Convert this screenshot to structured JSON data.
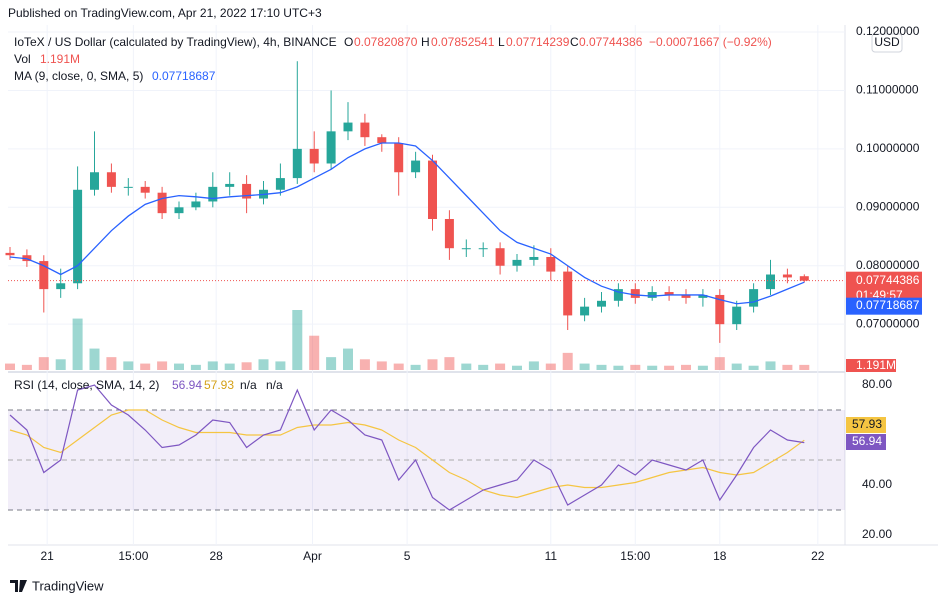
{
  "header": {
    "published": "Published on TradingView.com, Apr 21, 2022 17:10 UTC+3",
    "symbol": "IoTeX / US Dollar (calculated by TradingView), 4h, BINANCE",
    "o_label": "O",
    "o": "0.07820870",
    "h_label": "H",
    "h": "0.07852541",
    "l_label": "L",
    "l": "0.07714239",
    "c_label": "C",
    "c": "0.07744386",
    "change": "−0.00071667 (−0.92%)",
    "currency": "USD",
    "countdown": "01:49:57",
    "footer": "TradingView"
  },
  "chart_data": [
    {
      "type": "candlestick",
      "up_color": "#26a69a",
      "down_color": "#ef5350",
      "open": [
        0.0822,
        0.0818,
        0.0808,
        0.076,
        0.077,
        0.093,
        0.096,
        0.0935,
        0.0935,
        0.0925,
        0.089,
        0.09,
        0.091,
        0.0935,
        0.094,
        0.0915,
        0.093,
        0.095,
        0.1,
        0.0975,
        0.103,
        0.1045,
        0.102,
        0.101,
        0.096,
        0.098,
        0.088,
        0.083,
        0.083,
        0.083,
        0.08,
        0.081,
        0.0815,
        0.079,
        0.0715,
        0.073,
        0.074,
        0.076,
        0.0745,
        0.0755,
        0.075,
        0.0745,
        0.075,
        0.07,
        0.073,
        0.076,
        0.0785,
        0.0782087
      ],
      "high": [
        0.0832,
        0.0828,
        0.0818,
        0.0795,
        0.097,
        0.103,
        0.0975,
        0.095,
        0.0945,
        0.0935,
        0.091,
        0.0925,
        0.096,
        0.096,
        0.0955,
        0.0945,
        0.0975,
        0.115,
        0.103,
        0.11,
        0.108,
        0.106,
        0.1025,
        0.102,
        0.0995,
        0.099,
        0.0895,
        0.0845,
        0.084,
        0.084,
        0.082,
        0.0835,
        0.083,
        0.08,
        0.0745,
        0.0755,
        0.077,
        0.077,
        0.0765,
        0.0765,
        0.076,
        0.076,
        0.076,
        0.074,
        0.077,
        0.081,
        0.0795,
        0.07852541
      ],
      "low": [
        0.081,
        0.0798,
        0.072,
        0.0745,
        0.076,
        0.092,
        0.0925,
        0.092,
        0.0915,
        0.088,
        0.088,
        0.0895,
        0.09,
        0.092,
        0.089,
        0.0905,
        0.092,
        0.094,
        0.096,
        0.0965,
        0.1015,
        0.1005,
        0.0995,
        0.092,
        0.095,
        0.086,
        0.081,
        0.0815,
        0.0815,
        0.0785,
        0.079,
        0.08,
        0.0775,
        0.069,
        0.0705,
        0.072,
        0.073,
        0.0735,
        0.074,
        0.074,
        0.0735,
        0.073,
        0.0668,
        0.069,
        0.072,
        0.075,
        0.077,
        0.07714239
      ],
      "close": [
        0.0818,
        0.0808,
        0.076,
        0.077,
        0.093,
        0.096,
        0.0935,
        0.0935,
        0.0925,
        0.089,
        0.09,
        0.091,
        0.0935,
        0.094,
        0.0915,
        0.093,
        0.095,
        0.1,
        0.0975,
        0.103,
        0.1045,
        0.102,
        0.101,
        0.096,
        0.098,
        0.088,
        0.083,
        0.083,
        0.083,
        0.08,
        0.081,
        0.0815,
        0.079,
        0.0715,
        0.073,
        0.074,
        0.076,
        0.0745,
        0.0755,
        0.075,
        0.0745,
        0.075,
        0.07,
        0.073,
        0.076,
        0.0785,
        0.078,
        0.07744386
      ],
      "volume_name": "Vol",
      "volume": [
        1500000,
        1200000,
        3000000,
        2500000,
        12000000,
        5000000,
        3000000,
        2000000,
        1500000,
        2000000,
        1500000,
        1200000,
        2000000,
        1500000,
        1800000,
        2500000,
        2000000,
        14000000,
        8000000,
        3000000,
        5000000,
        2500000,
        2000000,
        1500000,
        1200000,
        2500000,
        3000000,
        1500000,
        1200000,
        1500000,
        1000000,
        2000000,
        1500000,
        4000000,
        1500000,
        1200000,
        1000000,
        1200000,
        1000000,
        1000000,
        1200000,
        1000000,
        3000000,
        1500000,
        1000000,
        2000000,
        1200000,
        1191000
      ],
      "volume_labels": {
        "47": "1.191M"
      },
      "ma": {
        "name": "MA (9, close, 0, SMA, 5)",
        "color": "#2962ff",
        "values": [
          0.0815,
          0.0812,
          0.08,
          0.0785,
          0.08,
          0.083,
          0.086,
          0.0885,
          0.0905,
          0.0915,
          0.092,
          0.0918,
          0.0915,
          0.0918,
          0.092,
          0.0922,
          0.0925,
          0.0935,
          0.095,
          0.0965,
          0.0985,
          0.1,
          0.101,
          0.101,
          0.1005,
          0.098,
          0.095,
          0.092,
          0.089,
          0.086,
          0.084,
          0.083,
          0.082,
          0.08,
          0.078,
          0.0765,
          0.0755,
          0.075,
          0.0748,
          0.075,
          0.075,
          0.075,
          0.0742,
          0.0735,
          0.0738,
          0.0748,
          0.076,
          0.07718687
        ]
      },
      "ylim": [
        0.0625,
        0.1212
      ],
      "yticks": [
        {
          "value": 0.12,
          "label": "0.12000000"
        },
        {
          "value": 0.11,
          "label": "0.11000000"
        },
        {
          "value": 0.1,
          "label": "0.10000000"
        },
        {
          "value": 0.09,
          "label": "0.09000000"
        },
        {
          "value": 0.08,
          "label": "0.08000000"
        },
        {
          "value": 0.07,
          "label": "0.07000000"
        }
      ],
      "xticks": [
        {
          "value": 2.2,
          "label": "21"
        },
        {
          "value": 7.3,
          "label": "15:00"
        },
        {
          "value": 12.2,
          "label": "28"
        },
        {
          "value": 17.9,
          "label": "Apr"
        },
        {
          "value": 23.5,
          "label": "5"
        },
        {
          "value": 32,
          "label": "11"
        },
        {
          "value": 37,
          "label": "15:00"
        },
        {
          "value": 42,
          "label": "18"
        },
        {
          "value": 47.8,
          "label": "22"
        }
      ],
      "grid": true
    },
    {
      "type": "line",
      "name": "RSI (14, close, SMA, 14, 2)",
      "na": [
        "n/a",
        "n/a"
      ],
      "band": [
        30,
        70
      ],
      "band_color": "#7e57c2",
      "series": [
        {
          "name": "RSI",
          "color": "#7e57c2",
          "values": [
            68,
            62,
            45,
            50,
            78,
            80,
            72,
            68,
            62,
            55,
            56,
            60,
            66,
            65,
            55,
            60,
            62,
            78,
            62,
            70,
            66,
            60,
            58,
            42,
            50,
            35,
            30,
            34,
            38,
            40,
            42,
            50,
            46,
            32,
            36,
            40,
            48,
            44,
            50,
            48,
            46,
            50,
            34,
            44,
            55,
            62,
            58,
            56.94
          ]
        },
        {
          "name": "RSI MA",
          "color": "#f5c542",
          "values": [
            62,
            60,
            55,
            53,
            58,
            63,
            68,
            70,
            70,
            66,
            63,
            61,
            61,
            61,
            60,
            60,
            60,
            63,
            64,
            64,
            65,
            64,
            62,
            58,
            55,
            50,
            45,
            42,
            38,
            36,
            35,
            37,
            39,
            40,
            39,
            39,
            40,
            41,
            43,
            45,
            46,
            47,
            45,
            44,
            45,
            49,
            53,
            57.93
          ]
        }
      ],
      "ylim": [
        16,
        84
      ],
      "yticks": [
        {
          "value": 80,
          "label": "80.00"
        },
        {
          "value": 40,
          "label": "40.00"
        },
        {
          "value": 20,
          "label": "20.00"
        }
      ]
    }
  ]
}
